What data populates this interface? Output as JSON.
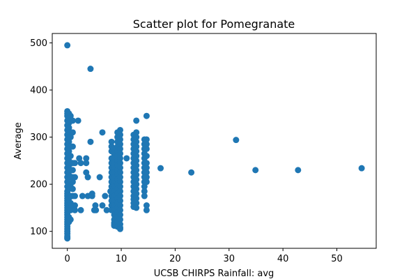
{
  "chart_data": {
    "type": "scatter",
    "title": "Scatter plot for Pomegranate",
    "xlabel": "UCSB CHIRPS Rainfall: avg",
    "ylabel": "Average",
    "xlim": [
      -2.8,
      57.3
    ],
    "ylim": [
      64,
      520
    ],
    "xticks": [
      0,
      10,
      20,
      30,
      40,
      50
    ],
    "yticks": [
      100,
      200,
      300,
      400,
      500
    ],
    "grid": false,
    "legend": "none",
    "color": "#1f77b4",
    "series": [
      {
        "x": [
          0.0,
          0.0,
          0.0,
          0.0,
          0.0,
          0.0,
          0.0,
          0.0,
          0.0,
          0.0,
          0.0,
          0.0,
          0.0,
          0.0,
          0.0,
          0.0,
          0.0,
          0.0,
          0.0,
          0.0,
          0.0,
          0.0,
          0.0,
          0.0,
          0.0,
          0.0,
          0.0,
          0.0,
          0.0,
          0.0,
          0.0,
          0.0,
          0.0,
          0.0,
          0.0,
          0.0,
          0.0,
          0.0,
          0.0,
          0.0,
          0.0,
          0.3,
          0.3,
          0.3,
          0.3,
          0.3,
          0.3,
          0.3,
          0.3,
          0.3,
          0.3,
          0.3,
          0.3,
          0.3,
          0.3,
          0.3,
          0.3,
          0.3,
          0.3,
          0.3,
          0.3,
          0.6,
          0.6,
          0.6,
          0.6,
          0.6,
          0.6,
          0.6,
          0.6,
          0.6,
          0.6,
          0.6,
          0.6,
          0.6,
          1.0,
          1.0,
          1.0,
          1.0,
          1.0,
          1.0,
          1.0,
          1.0,
          1.0,
          1.0,
          1.4,
          1.4,
          1.4,
          1.4,
          1.4,
          2.0,
          2.2,
          2.5,
          2.5,
          2.8,
          3.5,
          3.5,
          3.5,
          3.8,
          3.8,
          4.3,
          4.3,
          4.6,
          4.6,
          5.0,
          5.2,
          5.3,
          6.0,
          6.5,
          6.5,
          7.0,
          7.3,
          8.0,
          8.2,
          8.2,
          8.2,
          8.2,
          8.2,
          8.2,
          8.2,
          8.2,
          8.2,
          8.2,
          8.2,
          8.2,
          8.2,
          8.2,
          8.2,
          8.7,
          8.7,
          8.7,
          8.7,
          8.7,
          8.7,
          8.7,
          8.7,
          8.7,
          8.7,
          8.7,
          8.7,
          8.7,
          8.7,
          8.7,
          8.7,
          8.7,
          8.7,
          8.7,
          9.3,
          9.3,
          9.3,
          9.3,
          9.3,
          9.3,
          9.3,
          9.3,
          9.3,
          9.3,
          9.3,
          9.3,
          9.3,
          9.3,
          9.3,
          9.3,
          9.3,
          9.3,
          9.3,
          9.3,
          9.3,
          9.8,
          9.8,
          9.8,
          9.8,
          9.8,
          9.8,
          9.8,
          9.8,
          9.8,
          9.8,
          9.8,
          9.8,
          9.8,
          9.8,
          9.8,
          9.8,
          9.8,
          9.8,
          9.8,
          9.8,
          9.8,
          9.8,
          9.8,
          11.0,
          12.3,
          12.3,
          12.3,
          12.3,
          12.3,
          12.3,
          12.3,
          12.3,
          12.3,
          12.3,
          12.3,
          12.3,
          12.3,
          12.3,
          12.3,
          12.3,
          12.3,
          12.8,
          12.8,
          12.8,
          12.8,
          12.8,
          12.8,
          12.8,
          12.8,
          12.8,
          12.8,
          12.8,
          12.8,
          12.8,
          12.8,
          12.8,
          12.8,
          12.8,
          12.8,
          14.3,
          14.3,
          14.3,
          14.3,
          14.3,
          14.3,
          14.3,
          14.3,
          14.3,
          14.3,
          14.3,
          14.3,
          14.3,
          14.7,
          14.7,
          14.7,
          14.7,
          14.7,
          14.7,
          14.7,
          14.7,
          14.7,
          14.7,
          14.7,
          14.7,
          17.3,
          23.0,
          31.3,
          34.9,
          42.8,
          54.6
        ],
        "y": [
          495,
          355,
          350,
          345,
          335,
          325,
          315,
          305,
          295,
          285,
          275,
          265,
          255,
          245,
          235,
          225,
          215,
          205,
          195,
          185,
          180,
          175,
          170,
          165,
          160,
          155,
          150,
          145,
          140,
          135,
          130,
          125,
          120,
          115,
          110,
          105,
          100,
          95,
          90,
          87,
          85,
          350,
          340,
          330,
          320,
          310,
          300,
          290,
          280,
          270,
          260,
          250,
          240,
          230,
          220,
          200,
          190,
          170,
          150,
          130,
          120,
          345,
          310,
          300,
          280,
          260,
          245,
          230,
          215,
          195,
          175,
          160,
          145,
          125,
          335,
          310,
          280,
          245,
          230,
          215,
          205,
          190,
          175,
          155,
          245,
          215,
          175,
          155,
          145,
          335,
          255,
          245,
          145,
          175,
          255,
          245,
          225,
          175,
          215,
          445,
          290,
          180,
          175,
          145,
          155,
          145,
          215,
          310,
          155,
          175,
          145,
          185,
          290,
          280,
          270,
          255,
          245,
          235,
          225,
          215,
          205,
          195,
          185,
          175,
          165,
          155,
          145,
          275,
          265,
          255,
          245,
          235,
          225,
          215,
          205,
          195,
          185,
          175,
          165,
          155,
          145,
          135,
          125,
          118,
          115,
          112,
          310,
          300,
          290,
          280,
          270,
          260,
          250,
          240,
          230,
          220,
          210,
          200,
          190,
          180,
          170,
          160,
          150,
          140,
          130,
          120,
          110,
          315,
          305,
          295,
          285,
          275,
          265,
          255,
          245,
          235,
          225,
          215,
          205,
          195,
          185,
          175,
          165,
          155,
          145,
          135,
          125,
          115,
          108,
          105,
          255,
          305,
          295,
          285,
          275,
          265,
          255,
          245,
          235,
          225,
          215,
          205,
          195,
          185,
          175,
          168,
          160,
          152,
          335,
          310,
          300,
          290,
          280,
          270,
          260,
          250,
          240,
          230,
          220,
          210,
          200,
          190,
          180,
          170,
          160,
          150,
          295,
          285,
          275,
          265,
          255,
          245,
          235,
          225,
          215,
          205,
          195,
          185,
          175,
          345,
          295,
          285,
          275,
          260,
          245,
          235,
          225,
          215,
          205,
          155,
          145,
          234,
          225,
          294,
          230,
          230,
          234
        ]
      }
    ]
  }
}
